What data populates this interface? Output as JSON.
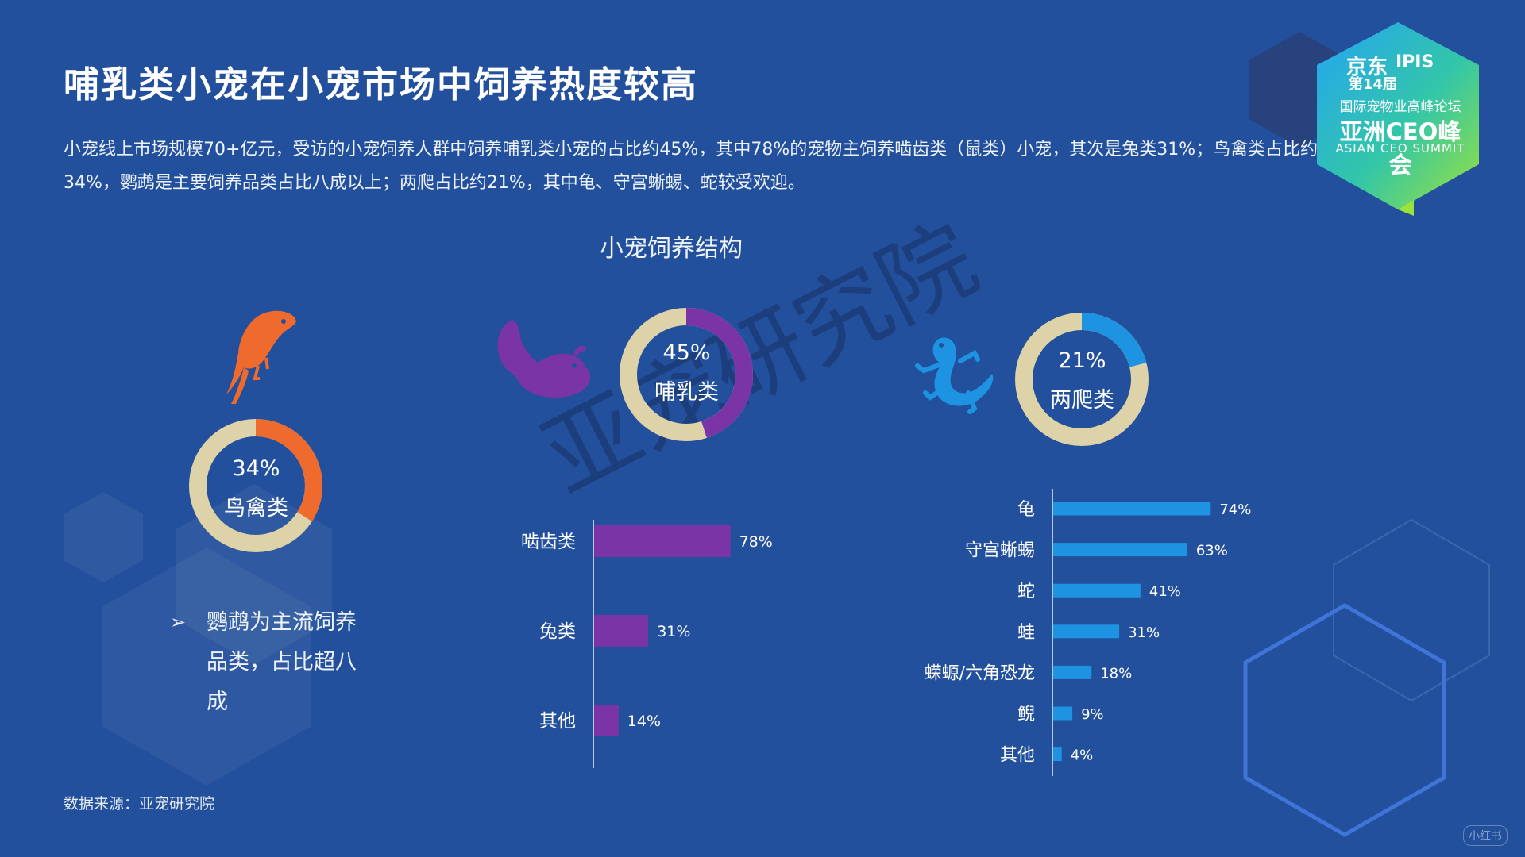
{
  "page": {
    "title": "哺乳类小宠在小宠市场中饲养热度较高",
    "intro": "小宠线上市场规模70+亿元，受访的小宠饲养人群中饲养哺乳类小宠的占比约45%，其中78%的宠物主饲养啮齿类（鼠类）小宠，其次是兔类31%；鸟禽类占比约34%，鹦鹉是主要饲养品类占比八成以上；两爬占比约21%，其中龟、守宫蜥蜴、蛇较受欢迎。",
    "source": "数据来源：亚宠研究院",
    "watermark": "亚宠研究院",
    "bullet_marker": "➢",
    "bullet": "鹦鹉为主流饲养品类，占比超八成"
  },
  "logo": {
    "brand": "京东",
    "edition": "第14届",
    "ipis": "IPIS",
    "forum": "国际宠物业高峰论坛",
    "summit": "亚洲CEO峰会",
    "english": "ASIAN CEO SUMMIT"
  },
  "corner_mark": "小红书",
  "colors": {
    "background": "#23509c",
    "donut_rest": "#ddd2a8",
    "bird": "#ee6a2d",
    "mammal": "#7b34a6",
    "reptile": "#1e93e2"
  },
  "icons": [
    "bird-parrot-icon",
    "chinchilla-icon",
    "gecko-icon"
  ],
  "chart_data": [
    {
      "type": "pie",
      "title": "小宠饲养结构",
      "donuts": [
        {
          "category": "鸟禽类",
          "label": "34%",
          "value": 34,
          "color": "#ee6a2d"
        },
        {
          "category": "哺乳类",
          "label": "45%",
          "value": 45,
          "color": "#7b34a6"
        },
        {
          "category": "两爬类",
          "label": "21%",
          "value": 21,
          "color": "#1e93e2"
        }
      ]
    },
    {
      "type": "bar",
      "orientation": "horizontal",
      "categories": [
        "啮齿类",
        "兔类",
        "其他"
      ],
      "values": [
        78,
        31,
        14
      ],
      "labels": [
        "78%",
        "31%",
        "14%"
      ],
      "color": "#7b34a6"
    },
    {
      "type": "bar",
      "orientation": "horizontal",
      "categories": [
        "龟",
        "守宫蜥蜴",
        "蛇",
        "蛙",
        "蝾螈/六角恐龙",
        "鲵",
        "其他"
      ],
      "values": [
        74,
        63,
        41,
        31,
        18,
        9,
        4
      ],
      "labels": [
        "74%",
        "63%",
        "41%",
        "31%",
        "18%",
        "9%",
        "4%"
      ],
      "color": "#1e93e2"
    }
  ]
}
